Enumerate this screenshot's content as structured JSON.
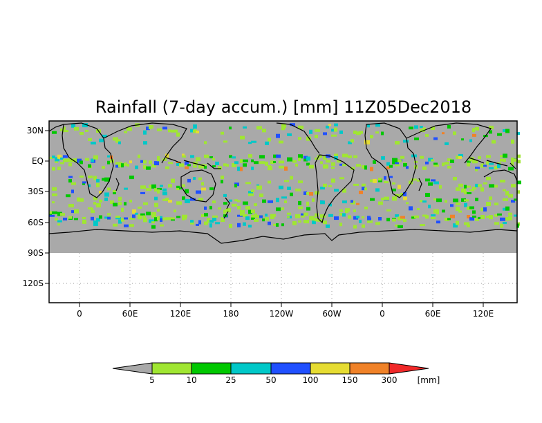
{
  "title": "Rainfall (7-day accum.) [mm] 11Z05Dec2018",
  "lat_labels": [
    "30N",
    "EQ",
    "30S",
    "60S",
    "90S",
    "120S"
  ],
  "lon_labels": [
    "0",
    "60E",
    "120E",
    "180",
    "120W",
    "60W",
    "0",
    "60E",
    "120E"
  ],
  "colorbar": {
    "unit": "[mm]",
    "thresholds": [
      "5",
      "10",
      "25",
      "50",
      "100",
      "150",
      "300"
    ],
    "colors": [
      "#a9a9a9",
      "#a0e632",
      "#00c800",
      "#00c8c8",
      "#2050ff",
      "#e6dc32",
      "#f08228",
      "#f02828"
    ]
  },
  "palette": {
    "background_gray": "#a9a9a9",
    "coast": "#000000"
  }
}
